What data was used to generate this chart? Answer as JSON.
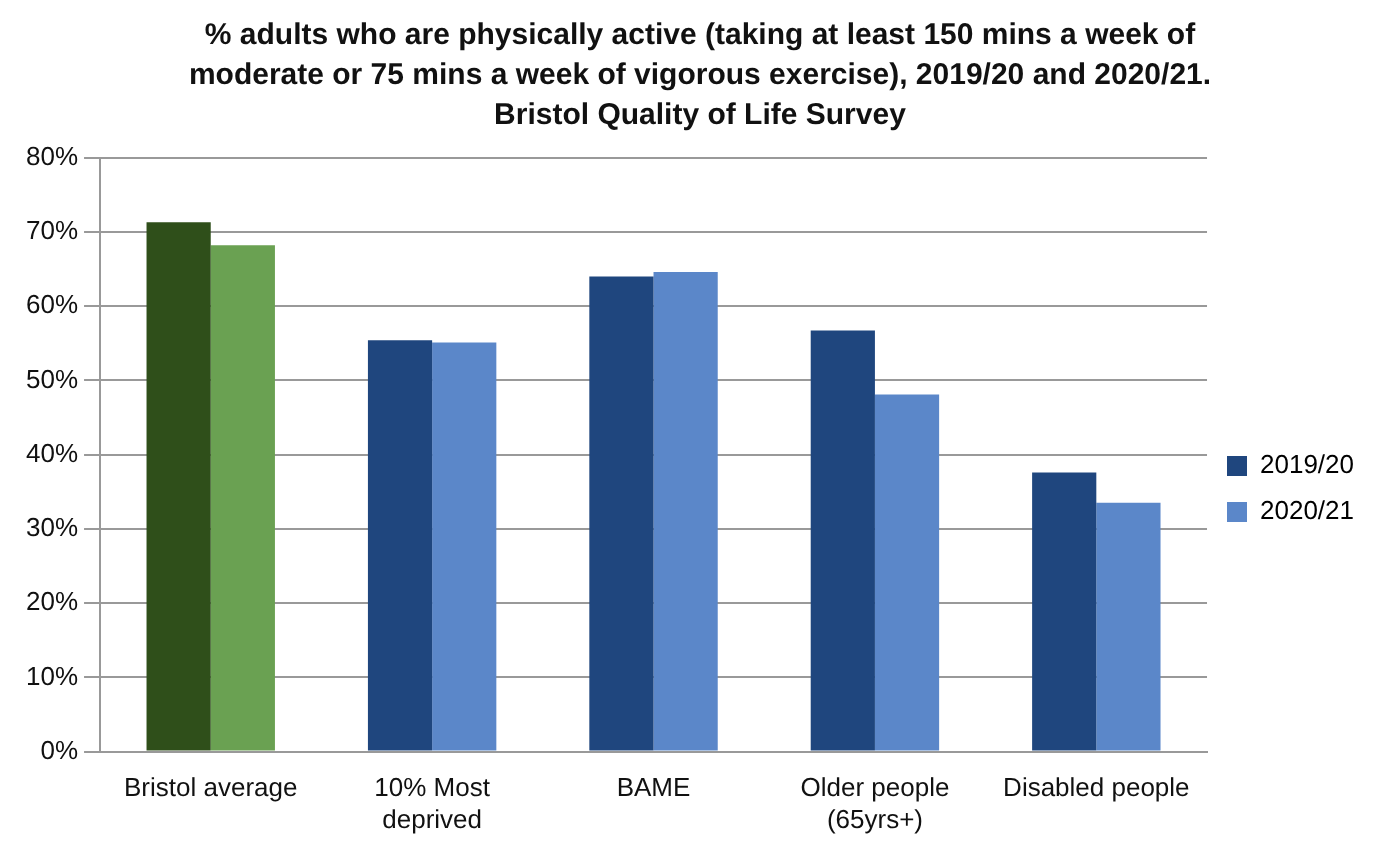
{
  "chart_data": {
    "type": "bar",
    "title": "% adults who are physically active (taking at least 150 mins a week of moderate or 75 mins a week of vigorous exercise), 2019/20 and 2020/21. Bristol Quality of Life Survey",
    "categories": [
      "Bristol average",
      "10% Most deprived",
      "BAME",
      "Older people (65yrs+)",
      "Disabled people"
    ],
    "series": [
      {
        "name": "2019/20",
        "color": "#1f467e",
        "colors": [
          "#2f4f1a",
          "#1f467e",
          "#1f467e",
          "#1f467e",
          "#1f467e"
        ],
        "values": [
          71.3,
          55.4,
          64.0,
          56.7,
          37.6
        ]
      },
      {
        "name": "2020/21",
        "color": "#5b87c9",
        "colors": [
          "#6aa152",
          "#5b87c9",
          "#5b87c9",
          "#5b87c9",
          "#5b87c9"
        ],
        "values": [
          68.2,
          55.1,
          64.6,
          48.1,
          33.5
        ]
      }
    ],
    "ylim": [
      0,
      80
    ],
    "yticks": [
      {
        "value": 0,
        "label": "0%"
      },
      {
        "value": 10,
        "label": "10%"
      },
      {
        "value": 20,
        "label": "20%"
      },
      {
        "value": 30,
        "label": "30%"
      },
      {
        "value": 40,
        "label": "40%"
      },
      {
        "value": 50,
        "label": "50%"
      },
      {
        "value": 60,
        "label": "60%"
      },
      {
        "value": 70,
        "label": "70%"
      },
      {
        "value": 80,
        "label": "80%"
      }
    ],
    "grid": "y",
    "legend": "right"
  }
}
